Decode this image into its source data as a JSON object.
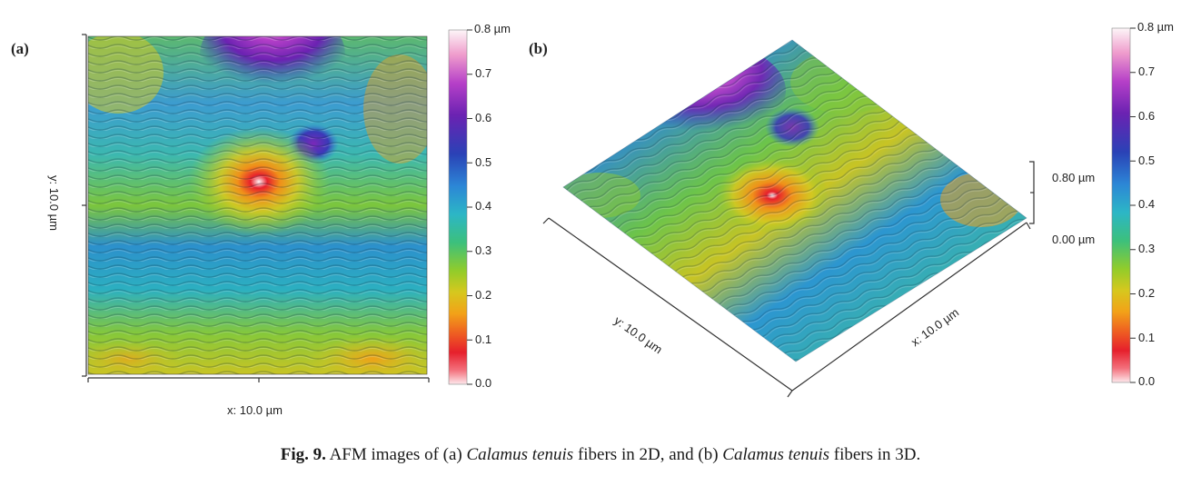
{
  "panel_a": {
    "label": "(a)",
    "x_axis_label": "x: 10.0 µm",
    "y_axis_label": "y: 10.0 µm"
  },
  "panel_b": {
    "label": "(b)",
    "x_axis_label": "x: 10.0 µm",
    "y_axis_label": "y: 10.0 µm",
    "z_scale_top": "0.80 µm",
    "z_scale_bottom": "0.00 µm"
  },
  "colorbar": {
    "top_label": "0.8 µm",
    "ticks": [
      "0.7",
      "0.6",
      "0.5",
      "0.4",
      "0.3",
      "0.2",
      "0.1",
      "0.0"
    ],
    "colors": [
      "#fdf3f5",
      "#f2a0c8",
      "#b03cc8",
      "#6a1fb0",
      "#2a3fb4",
      "#2f7fd8",
      "#2fb6c8",
      "#3cc080",
      "#8fcc2c",
      "#d2c820",
      "#f0a018",
      "#ee5a20",
      "#e8202a",
      "#f06070",
      "#fde4e8"
    ]
  },
  "caption": {
    "fig": "Fig. 9.",
    "t1": "AFM images of (a)",
    "i1": "Calamus tenuis",
    "t2": "fibers in 2D, and (b)",
    "i2": "Calamus tenuis",
    "t3": "fibers in 3D."
  }
}
